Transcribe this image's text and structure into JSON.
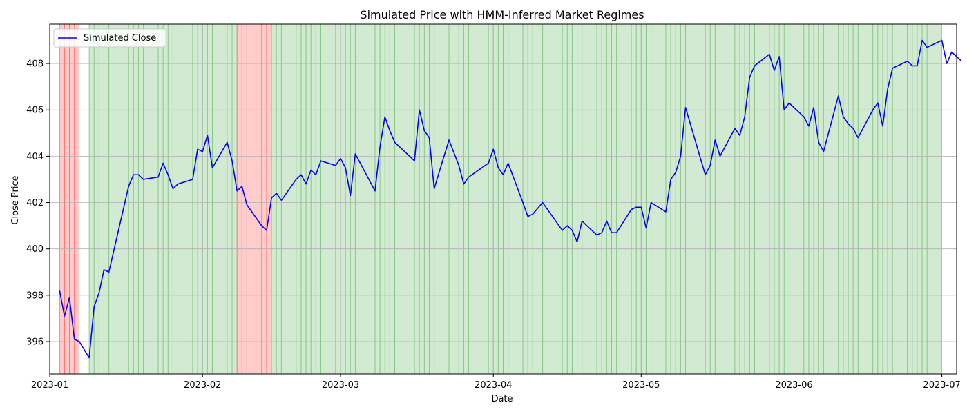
{
  "chart_data": {
    "type": "line",
    "title": "Simulated Price with HMM-Inferred Market Regimes",
    "xlabel": "Date",
    "ylabel": "Close Price",
    "xlim": [
      "2023-01-01",
      "2023-07-04"
    ],
    "ylim": [
      394.6,
      409.7
    ],
    "grid": true,
    "legend": {
      "position": "top-left",
      "entries": [
        "Simulated Close"
      ]
    },
    "x_ticks": [
      "2023-01",
      "2023-02",
      "2023-03",
      "2023-04",
      "2023-05",
      "2023-06",
      "2023-07"
    ],
    "y_ticks": [
      396,
      398,
      400,
      402,
      404,
      406,
      408
    ],
    "regime_colors": {
      "bull": "#2ca02c",
      "bear": "#ff0000"
    },
    "regime_segments": [
      {
        "regime": "bear",
        "start": "2023-01-03",
        "end": "2023-01-06"
      },
      {
        "regime": "bull",
        "start": "2023-01-09",
        "end": "2023-02-07"
      },
      {
        "regime": "bear",
        "start": "2023-02-08",
        "end": "2023-02-14"
      },
      {
        "regime": "bull",
        "start": "2023-02-15",
        "end": "2023-06-30"
      }
    ],
    "series": [
      {
        "name": "Simulated Close",
        "color": "#0000ff",
        "points": [
          [
            "2023-01-03",
            398.2
          ],
          [
            "2023-01-04",
            397.1
          ],
          [
            "2023-01-05",
            397.9
          ],
          [
            "2023-01-06",
            396.1
          ],
          [
            "2023-01-07",
            396.0
          ],
          [
            "2023-01-09",
            395.3
          ],
          [
            "2023-01-10",
            397.5
          ],
          [
            "2023-01-11",
            398.1
          ],
          [
            "2023-01-12",
            399.1
          ],
          [
            "2023-01-13",
            399.0
          ],
          [
            "2023-01-17",
            402.7
          ],
          [
            "2023-01-18",
            403.2
          ],
          [
            "2023-01-19",
            403.2
          ],
          [
            "2023-01-20",
            403.0
          ],
          [
            "2023-01-23",
            403.1
          ],
          [
            "2023-01-24",
            403.7
          ],
          [
            "2023-01-25",
            403.2
          ],
          [
            "2023-01-26",
            402.6
          ],
          [
            "2023-01-27",
            402.8
          ],
          [
            "2023-01-30",
            403.0
          ],
          [
            "2023-01-31",
            404.3
          ],
          [
            "2023-02-01",
            404.2
          ],
          [
            "2023-02-02",
            404.9
          ],
          [
            "2023-02-03",
            403.5
          ],
          [
            "2023-02-06",
            404.6
          ],
          [
            "2023-02-07",
            403.8
          ],
          [
            "2023-02-08",
            402.5
          ],
          [
            "2023-02-09",
            402.7
          ],
          [
            "2023-02-10",
            401.9
          ],
          [
            "2023-02-13",
            401.0
          ],
          [
            "2023-02-14",
            400.8
          ],
          [
            "2023-02-15",
            402.2
          ],
          [
            "2023-02-16",
            402.4
          ],
          [
            "2023-02-17",
            402.1
          ],
          [
            "2023-02-20",
            403.0
          ],
          [
            "2023-02-21",
            403.2
          ],
          [
            "2023-02-22",
            402.8
          ],
          [
            "2023-02-23",
            403.4
          ],
          [
            "2023-02-24",
            403.2
          ],
          [
            "2023-02-25",
            403.8
          ],
          [
            "2023-02-28",
            403.6
          ],
          [
            "2023-03-01",
            403.9
          ],
          [
            "2023-03-02",
            403.5
          ],
          [
            "2023-03-03",
            402.3
          ],
          [
            "2023-03-04",
            404.1
          ],
          [
            "2023-03-08",
            402.5
          ],
          [
            "2023-03-09",
            404.4
          ],
          [
            "2023-03-10",
            405.7
          ],
          [
            "2023-03-11",
            405.1
          ],
          [
            "2023-03-12",
            404.6
          ],
          [
            "2023-03-16",
            403.8
          ],
          [
            "2023-03-17",
            406.0
          ],
          [
            "2023-03-18",
            405.1
          ],
          [
            "2023-03-19",
            404.8
          ],
          [
            "2023-03-20",
            402.6
          ],
          [
            "2023-03-23",
            404.7
          ],
          [
            "2023-03-25",
            403.6
          ],
          [
            "2023-03-26",
            402.8
          ],
          [
            "2023-03-27",
            403.1
          ],
          [
            "2023-03-31",
            403.7
          ],
          [
            "2023-04-01",
            404.3
          ],
          [
            "2023-04-02",
            403.5
          ],
          [
            "2023-04-03",
            403.2
          ],
          [
            "2023-04-04",
            403.7
          ],
          [
            "2023-04-07",
            402.0
          ],
          [
            "2023-04-08",
            401.4
          ],
          [
            "2023-04-09",
            401.5
          ],
          [
            "2023-04-11",
            402.0
          ],
          [
            "2023-04-15",
            400.8
          ],
          [
            "2023-04-16",
            401.0
          ],
          [
            "2023-04-17",
            400.8
          ],
          [
            "2023-04-18",
            400.3
          ],
          [
            "2023-04-19",
            401.2
          ],
          [
            "2023-04-22",
            400.6
          ],
          [
            "2023-04-23",
            400.7
          ],
          [
            "2023-04-24",
            401.2
          ],
          [
            "2023-04-25",
            400.7
          ],
          [
            "2023-04-26",
            400.7
          ],
          [
            "2023-04-29",
            401.7
          ],
          [
            "2023-04-30",
            401.8
          ],
          [
            "2023-05-01",
            401.8
          ],
          [
            "2023-05-02",
            400.9
          ],
          [
            "2023-05-03",
            402.0
          ],
          [
            "2023-05-06",
            401.6
          ],
          [
            "2023-05-07",
            403.0
          ],
          [
            "2023-05-08",
            403.3
          ],
          [
            "2023-05-09",
            404.0
          ],
          [
            "2023-05-10",
            406.1
          ],
          [
            "2023-05-14",
            403.2
          ],
          [
            "2023-05-15",
            403.6
          ],
          [
            "2023-05-16",
            404.7
          ],
          [
            "2023-05-17",
            404.0
          ],
          [
            "2023-05-20",
            405.2
          ],
          [
            "2023-05-21",
            404.9
          ],
          [
            "2023-05-22",
            405.7
          ],
          [
            "2023-05-23",
            407.4
          ],
          [
            "2023-05-24",
            407.9
          ],
          [
            "2023-05-27",
            408.4
          ],
          [
            "2023-05-28",
            407.7
          ],
          [
            "2023-05-29",
            408.3
          ],
          [
            "2023-05-30",
            406.0
          ],
          [
            "2023-05-31",
            406.3
          ],
          [
            "2023-06-03",
            405.7
          ],
          [
            "2023-06-04",
            405.3
          ],
          [
            "2023-06-05",
            406.1
          ],
          [
            "2023-06-06",
            404.6
          ],
          [
            "2023-06-07",
            404.2
          ],
          [
            "2023-06-10",
            406.6
          ],
          [
            "2023-06-11",
            405.7
          ],
          [
            "2023-06-12",
            405.4
          ],
          [
            "2023-06-13",
            405.2
          ],
          [
            "2023-06-14",
            404.8
          ],
          [
            "2023-06-17",
            406.0
          ],
          [
            "2023-06-18",
            406.3
          ],
          [
            "2023-06-19",
            405.3
          ],
          [
            "2023-06-20",
            406.9
          ],
          [
            "2023-06-21",
            407.8
          ],
          [
            "2023-06-24",
            408.1
          ],
          [
            "2023-06-25",
            407.9
          ],
          [
            "2023-06-26",
            407.9
          ],
          [
            "2023-06-27",
            409.0
          ],
          [
            "2023-06-28",
            408.7
          ],
          [
            "2023-07-01",
            409.0
          ],
          [
            "2023-07-02",
            408.0
          ],
          [
            "2023-07-03",
            408.5
          ],
          [
            "2023-07-05",
            408.1
          ]
        ]
      }
    ]
  }
}
